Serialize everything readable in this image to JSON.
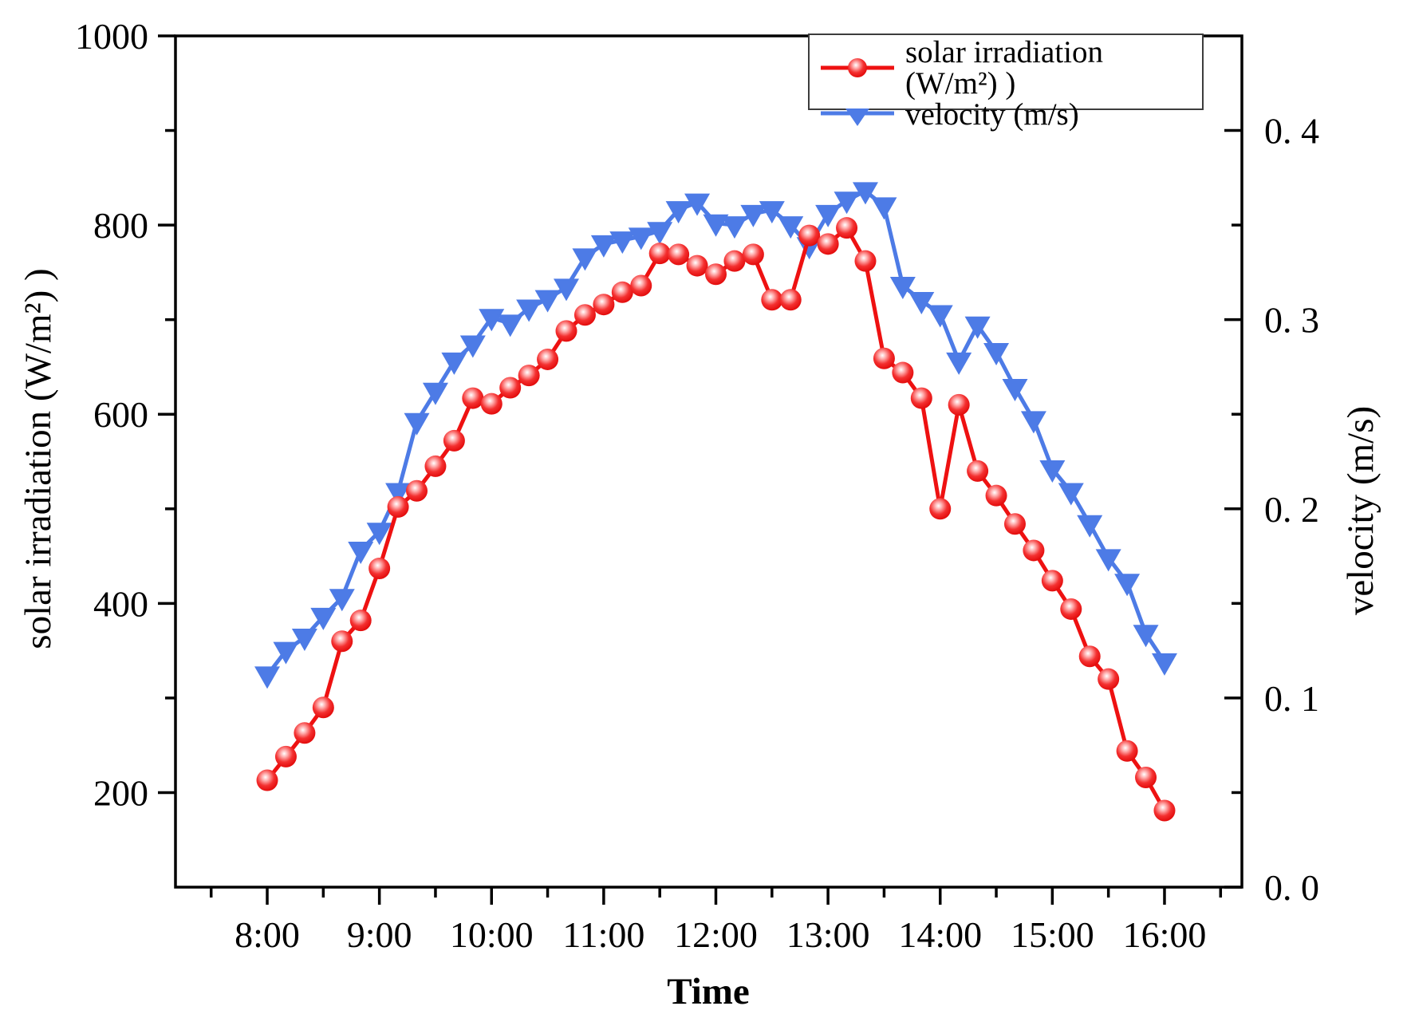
{
  "chart_data": {
    "type": "line",
    "title": "",
    "xlabel": "Time",
    "ylabel_left": "solar irradiation (W/m²) )",
    "ylabel_right": "velocity (m/s)",
    "legend": [
      "solar irradiation (W/m²) )",
      "velocity (m/s)"
    ],
    "legend_position": "top-right-inside",
    "grid": false,
    "x_times": [
      "8:00",
      "8:10",
      "8:20",
      "8:30",
      "8:40",
      "8:50",
      "9:00",
      "9:10",
      "9:20",
      "9:30",
      "9:40",
      "9:50",
      "10:00",
      "10:10",
      "10:20",
      "10:30",
      "10:40",
      "10:50",
      "11:00",
      "11:10",
      "11:20",
      "11:30",
      "11:40",
      "11:50",
      "12:00",
      "12:10",
      "12:20",
      "12:30",
      "12:40",
      "12:50",
      "13:00",
      "13:10",
      "13:20",
      "13:30",
      "13:40",
      "13:50",
      "14:00",
      "14:10",
      "14:20",
      "14:30",
      "14:40",
      "14:50",
      "15:00",
      "15:10",
      "15:20",
      "15:30",
      "15:40",
      "15:50",
      "16:00"
    ],
    "series": [
      {
        "name": "velocity",
        "axis": "right",
        "color": "#4d7be6",
        "marker": "triangle-down",
        "values": [
          0.112,
          0.125,
          0.132,
          0.143,
          0.153,
          0.178,
          0.188,
          0.209,
          0.246,
          0.262,
          0.278,
          0.287,
          0.301,
          0.298,
          0.306,
          0.311,
          0.317,
          0.333,
          0.34,
          0.342,
          0.344,
          0.347,
          0.358,
          0.362,
          0.351,
          0.35,
          0.356,
          0.358,
          0.35,
          0.339,
          0.356,
          0.363,
          0.368,
          0.36,
          0.318,
          0.31,
          0.303,
          0.278,
          0.297,
          0.283,
          0.264,
          0.247,
          0.221,
          0.209,
          0.192,
          0.174,
          0.161,
          0.134,
          0.119
        ]
      },
      {
        "name": "solar irradiation",
        "axis": "left",
        "color": "#ee1111",
        "marker": "circle",
        "values": [
          213,
          238,
          263,
          290,
          360,
          382,
          437,
          502,
          519,
          545,
          572,
          617,
          611,
          628,
          641,
          658,
          688,
          705,
          716,
          729,
          736,
          770,
          769,
          757,
          748,
          762,
          769,
          721,
          721,
          789,
          780,
          797,
          762,
          659,
          644,
          617,
          500,
          610,
          540,
          514,
          484,
          456,
          424,
          394,
          344,
          320,
          244,
          216,
          181
        ]
      }
    ],
    "axes": {
      "left": {
        "range": [
          100,
          1000
        ],
        "major_ticks": [
          200,
          400,
          600,
          800,
          1000
        ],
        "major_tick_labels": [
          "200",
          "400",
          "600",
          "800",
          "1000"
        ],
        "minor_ticks": [
          300,
          500,
          700,
          900
        ]
      },
      "right": {
        "range": [
          0,
          0.45
        ],
        "major_ticks": [
          0.0,
          0.1,
          0.2,
          0.3,
          0.4
        ],
        "major_tick_labels": [
          "0. 0",
          "0. 1",
          "0. 2",
          "0. 3",
          "0. 4"
        ],
        "minor_ticks": [
          0.05,
          0.15,
          0.25,
          0.35
        ]
      },
      "x": {
        "range_hours": [
          7.182,
          16.69
        ],
        "major_tick_hours": [
          8,
          9,
          10,
          11,
          12,
          13,
          14,
          15,
          16
        ],
        "major_tick_labels": [
          "8:00",
          "9:00",
          "10:00",
          "11:00",
          "12:00",
          "13:00",
          "14:00",
          "15:00",
          "16:00"
        ],
        "minor_tick_hours": [
          7.5,
          8.5,
          9.5,
          10.5,
          11.5,
          12.5,
          13.5,
          14.5,
          15.5,
          16.5
        ]
      }
    }
  }
}
